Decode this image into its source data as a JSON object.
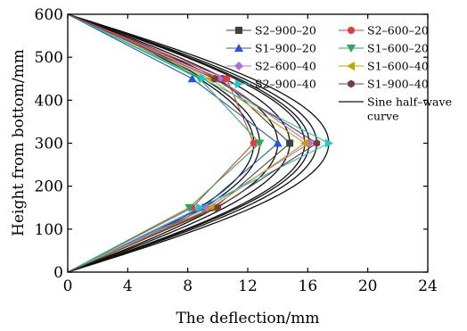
{
  "chart_data": {
    "type": "line",
    "title": "",
    "xlabel": "The deflection/mm",
    "ylabel": "Height from bottom/mm",
    "xlim": [
      0,
      24
    ],
    "ylim": [
      0,
      600
    ],
    "xticks": [
      "0",
      "4",
      "8",
      "12",
      "16",
      "20",
      "24"
    ],
    "yticks": [
      "0",
      "100",
      "200",
      "300",
      "400",
      "500",
      "600"
    ],
    "grid": false,
    "legend_position": "top-right",
    "y_points": [
      0,
      150,
      300,
      450,
      600
    ],
    "series": [
      {
        "name": "S2–900–20",
        "marker": "square",
        "color": "#404040",
        "x": [
          0,
          9.8,
          14.8,
          10.2,
          0
        ]
      },
      {
        "name": "S2–600–20",
        "marker": "circle",
        "color": "#e83a3a",
        "x": [
          0,
          8.3,
          12.4,
          10.6,
          0
        ]
      },
      {
        "name": "S1–900–20",
        "marker": "triangle-up",
        "color": "#2255e0",
        "x": [
          0,
          9.0,
          14.0,
          8.3,
          0
        ]
      },
      {
        "name": "S1–600–20",
        "marker": "triangle-down",
        "color": "#2aa860",
        "x": [
          0,
          8.1,
          12.8,
          8.8,
          0
        ]
      },
      {
        "name": "S2–600–40",
        "marker": "diamond",
        "color": "#b070e0",
        "x": [
          0,
          9.3,
          16.1,
          10.1,
          0
        ]
      },
      {
        "name": "S1–600–40",
        "marker": "triangle-left",
        "color": "#c8a000",
        "x": [
          0,
          9.6,
          15.8,
          9.5,
          0
        ]
      },
      {
        "name": "S2–900–40",
        "marker": "triangle-right",
        "color": "#1cc8c8",
        "x": [
          0,
          8.8,
          17.4,
          9.0,
          0
        ]
      },
      {
        "name": "S1–900–40",
        "marker": "hexagon",
        "color": "#7a3a3a",
        "x": [
          0,
          10.0,
          16.6,
          9.8,
          0
        ]
      }
    ],
    "sine_label": [
      "Sine half–wave",
      "curve"
    ],
    "sine_amplitudes": [
      12.4,
      12.8,
      14.0,
      14.8,
      15.8,
      16.1,
      16.6,
      17.4
    ]
  }
}
